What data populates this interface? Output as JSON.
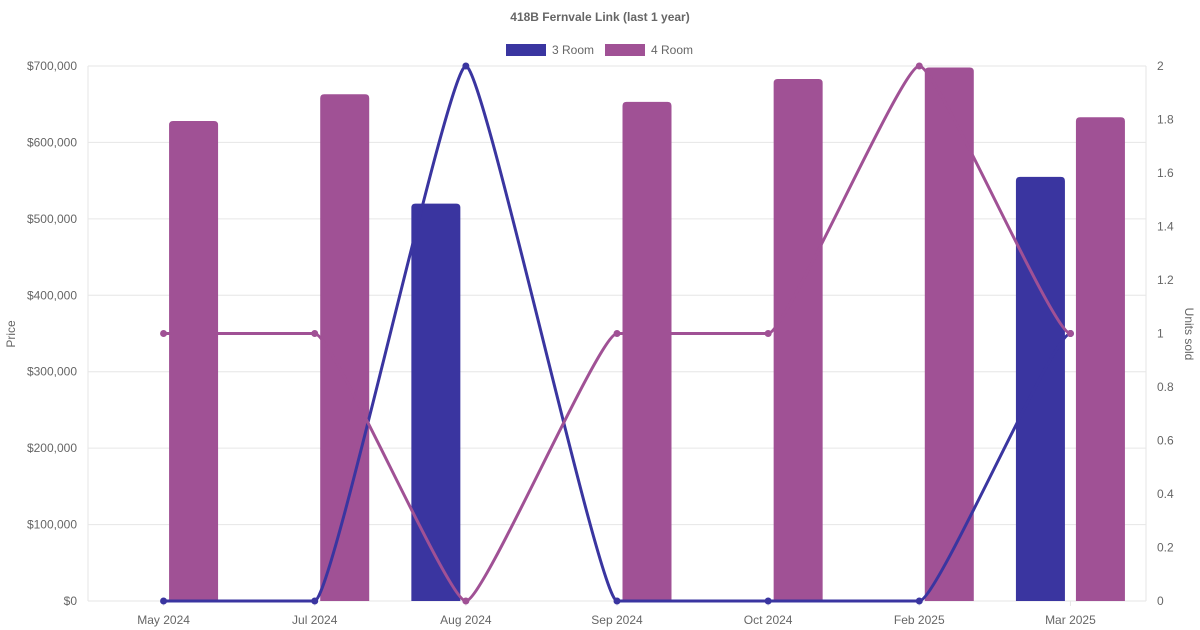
{
  "chart_data": {
    "type": "bar",
    "title": "418B Fernvale Link (last 1 year)",
    "categories": [
      "May 2024",
      "Jul 2024",
      "Aug 2024",
      "Sep 2024",
      "Oct 2024",
      "Feb 2025",
      "Mar 2025"
    ],
    "ylabel": "Price",
    "y2label": "Units sold",
    "ylim": [
      0,
      700000
    ],
    "y2lim": [
      0,
      2
    ],
    "y_ticks": [
      "$0",
      "$100,000",
      "$200,000",
      "$300,000",
      "$400,000",
      "$500,000",
      "$600,000",
      "$700,000"
    ],
    "y2_ticks": [
      "0",
      "0.2",
      "0.4",
      "0.6",
      "0.8",
      "1",
      "1.2",
      "1.4",
      "1.6",
      "1.8",
      "2"
    ],
    "grid": true,
    "legend_position": "top-center",
    "series": [
      {
        "name": "3 Room",
        "color": "#3a35a0",
        "price": [
          null,
          null,
          520000,
          null,
          null,
          null,
          555000
        ],
        "units": [
          0,
          0,
          2,
          0,
          0,
          0,
          1
        ]
      },
      {
        "name": "4 Room",
        "color": "#a05195",
        "price": [
          628000,
          663000,
          null,
          653000,
          683000,
          698000,
          633000
        ],
        "units": [
          1,
          1,
          0,
          1,
          1,
          2,
          1
        ]
      }
    ]
  }
}
